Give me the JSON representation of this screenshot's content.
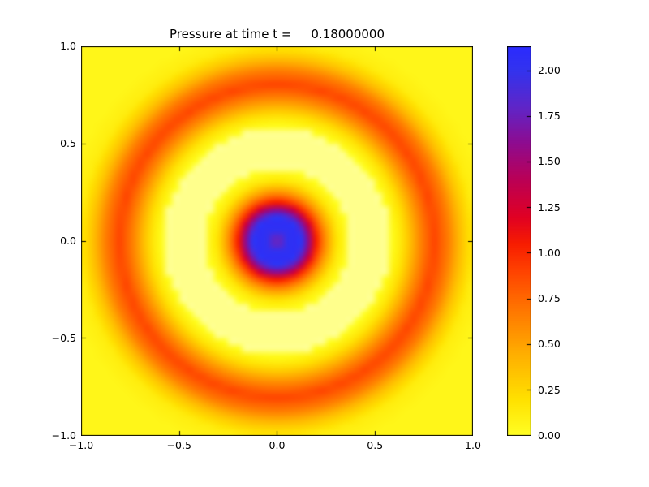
{
  "chart_data": {
    "type": "heatmap",
    "title": "Pressure at time t =     0.18000000",
    "time_value": "0.18000000",
    "xlabel": "",
    "ylabel": "",
    "x_range": [
      -1.0,
      1.0
    ],
    "y_range": [
      -1.0,
      1.0
    ],
    "x_tick_labels": [
      "−1.0",
      "−0.5",
      "0.0",
      "0.5",
      "1.0"
    ],
    "y_tick_labels": [
      "1.0",
      "0.5",
      "0.0",
      "−0.5",
      "−1.0"
    ],
    "colorbar": {
      "vmin": 0.0,
      "vmax": 2.133,
      "tick_values": [
        0.0,
        0.25,
        0.5,
        0.75,
        1.0,
        1.25,
        1.5,
        1.75,
        2.0
      ],
      "tick_labels": [
        "0.00",
        "0.25",
        "0.50",
        "0.75",
        "1.00",
        "1.25",
        "1.50",
        "1.75",
        "2.00"
      ]
    },
    "description": "Radially symmetric pressure field: high-pressure blue core at the origin (peak ~2.1) with a small purple dot at the very center, enclosed by a thin red ring near r=0.2, a pale-yellow low-pressure annulus, and a broad expanding orange-red ring peaking near r=0.8, on a yellow background near 0.",
    "radial_profile": [
      [
        0.0,
        1.62
      ],
      [
        0.05,
        2.02
      ],
      [
        0.12,
        2.08
      ],
      [
        0.16,
        1.6
      ],
      [
        0.2,
        1.02
      ],
      [
        0.25,
        0.55
      ],
      [
        0.31,
        0.15
      ],
      [
        0.38,
        -0.04
      ],
      [
        0.56,
        -0.06
      ],
      [
        0.64,
        0.18
      ],
      [
        0.73,
        0.62
      ],
      [
        0.8,
        0.9
      ],
      [
        0.87,
        0.68
      ],
      [
        0.94,
        0.35
      ],
      [
        1.01,
        0.12
      ],
      [
        1.1,
        0.06
      ],
      [
        1.6,
        0.06
      ]
    ],
    "colormap_stops": [
      [
        0.0,
        "#ffff24"
      ],
      [
        0.2,
        "#ffe100"
      ],
      [
        0.45,
        "#ffae00"
      ],
      [
        0.7,
        "#ff7400"
      ],
      [
        0.9,
        "#ff4300"
      ],
      [
        1.05,
        "#f71d00"
      ],
      [
        1.2,
        "#e00024"
      ],
      [
        1.4,
        "#bb0055"
      ],
      [
        1.6,
        "#8f0b8f"
      ],
      [
        1.8,
        "#5f25c8"
      ],
      [
        2.0,
        "#3333ee"
      ],
      [
        2.133,
        "#2a2aff"
      ]
    ],
    "under_color": "#ffff8c",
    "grid_resolution": 56,
    "frame_color": "#000000"
  }
}
